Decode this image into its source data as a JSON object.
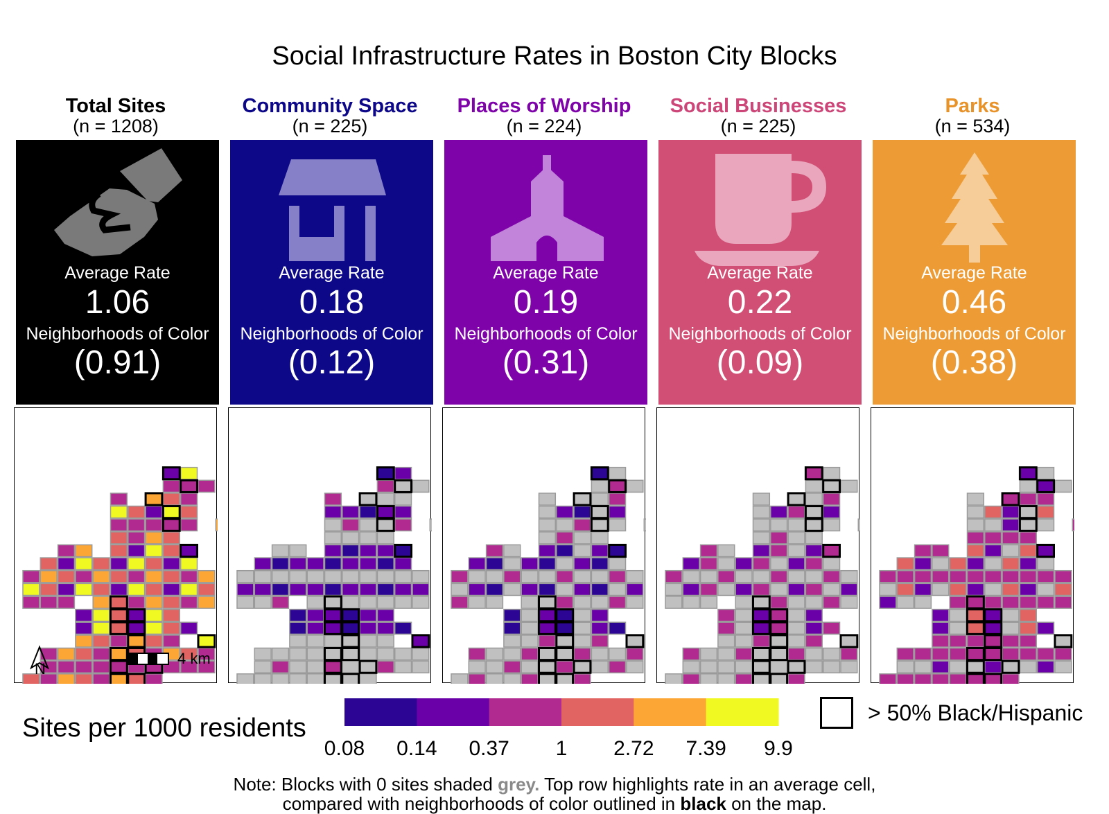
{
  "title": "Social Infrastructure Rates in Boston City Blocks",
  "labels": {
    "avg": "Average Rate",
    "noc": "Neighborhoods of Color"
  },
  "columns": [
    {
      "name": "Total Sites",
      "n": "(n = 1208)",
      "avg": "1.06",
      "noc": "(0.91)",
      "bg": "#000000",
      "title_color": "#000000",
      "icon": "handshake-icon",
      "icon_color": "#7a7a7a"
    },
    {
      "name": "Community Space",
      "n": "(n = 225)",
      "avg": "0.18",
      "noc": "(0.12)",
      "bg": "#0d0887",
      "title_color": "#0d0887",
      "icon": "community-space-icon",
      "icon_color": "#8580c8"
    },
    {
      "name": "Places of Worship",
      "n": "(n = 224)",
      "avg": "0.19",
      "noc": "(0.31)",
      "bg": "#7e03a8",
      "title_color": "#7e03a8",
      "icon": "church-icon",
      "icon_color": "#c184da"
    },
    {
      "name": "Social Businesses",
      "n": "(n = 225)",
      "avg": "0.22",
      "noc": "(0.09)",
      "bg": "#cc4778",
      "title_color": "#cc4778",
      "icon": "coffee-cup-icon",
      "icon_color": "#e9a6bc"
    },
    {
      "name": "Parks",
      "n": "(n = 534)",
      "avg": "0.46",
      "noc": "(0.38)",
      "bg": "#ed9b35",
      "title_color": "#e8922a",
      "icon": "tree-icon",
      "icon_color": "#f6cd98"
    }
  ],
  "legend": {
    "title": "Sites per 1000 residents",
    "colors": [
      "#2c0594",
      "#6a00a8",
      "#b12a90",
      "#e16462",
      "#fca636",
      "#f0f921"
    ],
    "ticks": [
      "0.08",
      "0.14",
      "0.37",
      "1",
      "2.72",
      "7.39",
      "9.9"
    ],
    "outline_label": "> 50% Black/Hispanic",
    "zero_color": "#c0c0c0"
  },
  "scale_bar": {
    "label": "4 km"
  },
  "north_arrow": {
    "label": "N"
  },
  "note": {
    "line1_a": "Note: Blocks with 0 sites shaded ",
    "line1_grey": "grey.",
    "line1_b": " Top row highlights rate in an average cell,",
    "line2_a": "compared with neighborhoods of color outlined in ",
    "line2_black": "black",
    "line2_b": " on the map."
  }
}
